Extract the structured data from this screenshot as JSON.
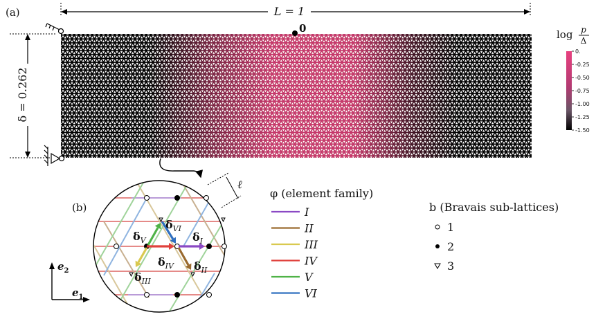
{
  "panel_a": {
    "label": "(a)",
    "length_label": "L = 1",
    "height_label": "δ = 0.262",
    "origin_label": "0"
  },
  "colorbar": {
    "title_log": "log",
    "title_num": "p",
    "title_den": "Δ",
    "ticks": [
      "0.",
      "-0.25",
      "-0.50",
      "-0.75",
      "-1.00",
      "-1.25",
      "-1.50"
    ],
    "color_high": "#e8417f",
    "color_low": "#000000"
  },
  "panel_b": {
    "label": "(b)",
    "ell_label": "ℓ",
    "vectors": [
      {
        "name": "I",
        "color": "#8b49c4"
      },
      {
        "name": "II",
        "color": "#9a6b2f"
      },
      {
        "name": "III",
        "color": "#d9c94f"
      },
      {
        "name": "IV",
        "color": "#e0413c"
      },
      {
        "name": "V",
        "color": "#4fb347"
      },
      {
        "name": "VI",
        "color": "#2f6fbf"
      }
    ],
    "e1": "e",
    "e1_sub": "1",
    "e2": "e",
    "e2_sub": "2"
  },
  "legend_phi": {
    "title": "φ (element family)",
    "items": [
      {
        "label": "I",
        "color": "#8b49c4"
      },
      {
        "label": "II",
        "color": "#9a6b2f"
      },
      {
        "label": "III",
        "color": "#d9c94f"
      },
      {
        "label": "IV",
        "color": "#e0413c"
      },
      {
        "label": "V",
        "color": "#4fb347"
      },
      {
        "label": "VI",
        "color": "#2f6fbf"
      }
    ]
  },
  "legend_b": {
    "title": "b (Bravais sub-lattices)",
    "items": [
      {
        "label": "1",
        "marker": "open-circle"
      },
      {
        "label": "2",
        "marker": "filled-circle"
      },
      {
        "label": "3",
        "marker": "open-triangle"
      }
    ]
  }
}
